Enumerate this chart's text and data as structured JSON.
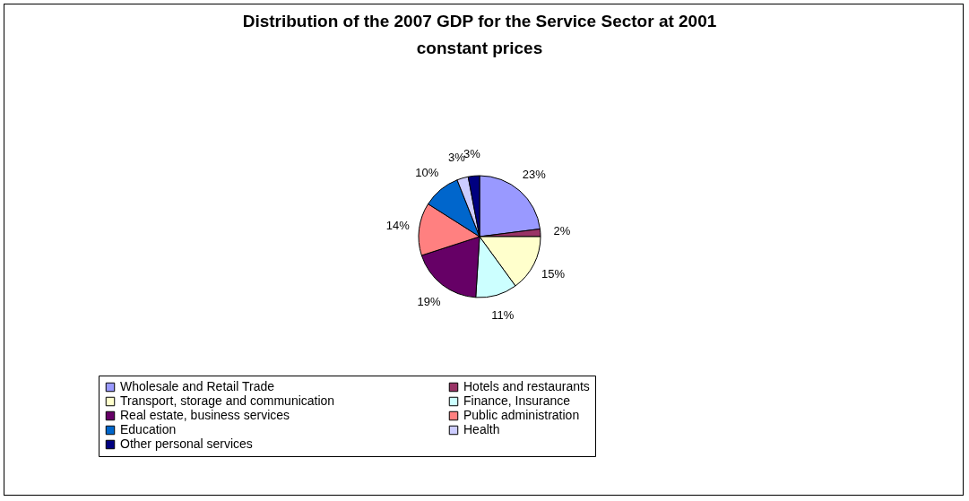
{
  "chart_data": {
    "type": "pie",
    "title": "Distribution of the 2007 GDP for the Service Sector at 2001 constant prices",
    "categories": [
      "Wholesale and Retail Trade",
      "Hotels and restaurants",
      "Transport, storage and communication",
      "Finance, Insurance",
      "Real estate, business services",
      "Public administration",
      "Education",
      "Health",
      "Other personal services"
    ],
    "values": [
      23,
      2,
      15,
      11,
      19,
      14,
      10,
      3,
      3
    ],
    "value_labels": [
      "23%",
      "2%",
      "15%",
      "11%",
      "19%",
      "14%",
      "10%",
      "3%",
      "3%"
    ],
    "colors": [
      "#9999ff",
      "#993366",
      "#ffffcc",
      "#ccffff",
      "#660066",
      "#ff8080",
      "#0066cc",
      "#ccccff",
      "#000080"
    ],
    "legend": "bottom"
  }
}
